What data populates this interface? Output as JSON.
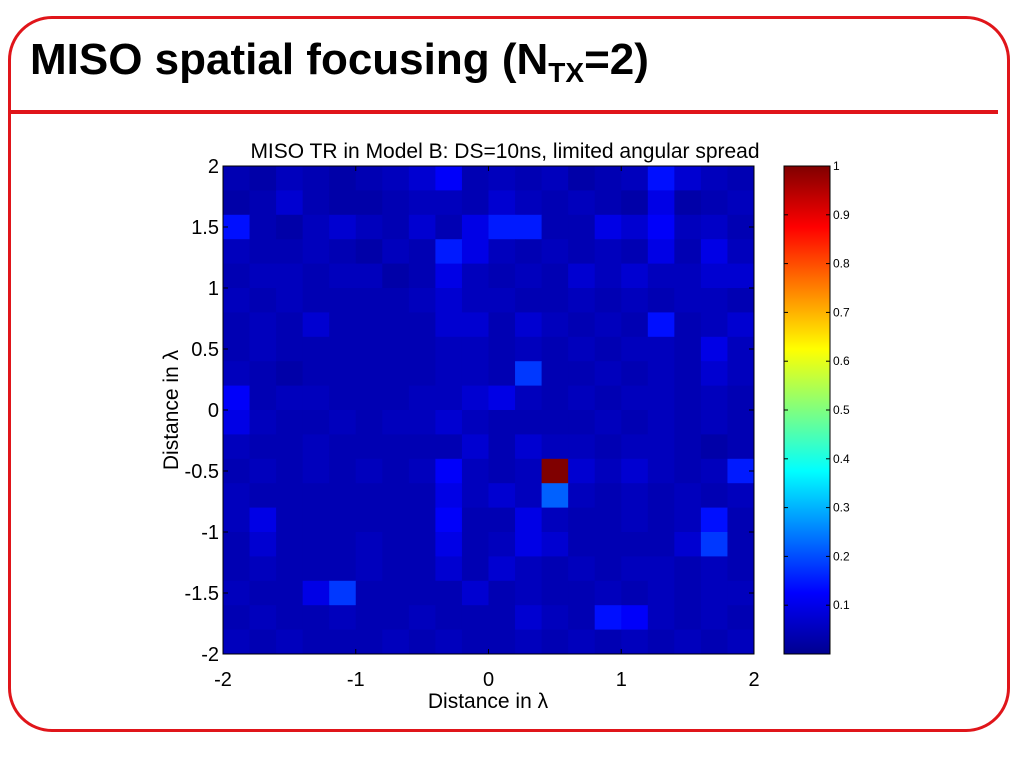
{
  "slide": {
    "title_main": "MISO spatial focusing (N",
    "title_sub": "TX",
    "title_end": "=2)",
    "accent_color": "#e0151a"
  },
  "chart_data": {
    "type": "heatmap",
    "title": "MISO TR in Model B: DS=10ns, limited angular spread",
    "xlabel": "Distance in λ",
    "ylabel": "Distance in λ",
    "xlim": [
      -2,
      2
    ],
    "ylim": [
      -2,
      2
    ],
    "xticks": [
      "-2",
      "-1",
      "0",
      "1",
      "2"
    ],
    "yticks": [
      "2",
      "1.5",
      "1",
      "0.5",
      "0",
      "-0.5",
      "-1",
      "-1.5",
      "-2"
    ],
    "colorbar": {
      "range": [
        0,
        1
      ],
      "ticks": [
        "1",
        "0.9",
        "0.8",
        "0.7",
        "0.6",
        "0.5",
        "0.4",
        "0.3",
        "0.2",
        "0.1"
      ],
      "colormap": "jet"
    },
    "rows": 20,
    "cols": 20,
    "row_order": "top_to_bottom (y = 2 down to -2)",
    "values": [
      [
        0.05,
        0.04,
        0.06,
        0.05,
        0.04,
        0.05,
        0.06,
        0.08,
        0.12,
        0.05,
        0.06,
        0.05,
        0.06,
        0.04,
        0.05,
        0.06,
        0.14,
        0.08,
        0.06,
        0.05
      ],
      [
        0.04,
        0.05,
        0.08,
        0.05,
        0.04,
        0.04,
        0.05,
        0.06,
        0.06,
        0.05,
        0.08,
        0.06,
        0.05,
        0.06,
        0.05,
        0.04,
        0.1,
        0.04,
        0.05,
        0.06
      ],
      [
        0.14,
        0.05,
        0.04,
        0.06,
        0.08,
        0.06,
        0.05,
        0.08,
        0.05,
        0.1,
        0.15,
        0.15,
        0.05,
        0.05,
        0.1,
        0.08,
        0.12,
        0.06,
        0.07,
        0.05
      ],
      [
        0.06,
        0.05,
        0.05,
        0.06,
        0.05,
        0.04,
        0.06,
        0.05,
        0.15,
        0.1,
        0.06,
        0.05,
        0.06,
        0.05,
        0.06,
        0.05,
        0.1,
        0.05,
        0.1,
        0.06
      ],
      [
        0.05,
        0.06,
        0.06,
        0.05,
        0.06,
        0.06,
        0.04,
        0.05,
        0.1,
        0.06,
        0.05,
        0.06,
        0.05,
        0.08,
        0.06,
        0.08,
        0.06,
        0.06,
        0.08,
        0.08
      ],
      [
        0.06,
        0.05,
        0.06,
        0.05,
        0.05,
        0.05,
        0.05,
        0.06,
        0.08,
        0.06,
        0.06,
        0.05,
        0.05,
        0.06,
        0.05,
        0.06,
        0.05,
        0.06,
        0.06,
        0.05
      ],
      [
        0.05,
        0.06,
        0.05,
        0.08,
        0.05,
        0.05,
        0.05,
        0.05,
        0.08,
        0.08,
        0.05,
        0.08,
        0.06,
        0.05,
        0.06,
        0.05,
        0.14,
        0.05,
        0.06,
        0.08
      ],
      [
        0.05,
        0.06,
        0.05,
        0.05,
        0.05,
        0.05,
        0.05,
        0.05,
        0.06,
        0.06,
        0.05,
        0.06,
        0.05,
        0.06,
        0.05,
        0.06,
        0.06,
        0.05,
        0.1,
        0.06
      ],
      [
        0.06,
        0.05,
        0.04,
        0.05,
        0.05,
        0.05,
        0.05,
        0.05,
        0.06,
        0.06,
        0.05,
        0.18,
        0.05,
        0.05,
        0.06,
        0.05,
        0.06,
        0.05,
        0.08,
        0.06
      ],
      [
        0.12,
        0.05,
        0.06,
        0.06,
        0.05,
        0.05,
        0.05,
        0.06,
        0.06,
        0.08,
        0.1,
        0.06,
        0.05,
        0.06,
        0.05,
        0.06,
        0.06,
        0.05,
        0.06,
        0.05
      ],
      [
        0.1,
        0.06,
        0.05,
        0.05,
        0.06,
        0.05,
        0.06,
        0.06,
        0.08,
        0.06,
        0.05,
        0.05,
        0.05,
        0.05,
        0.06,
        0.05,
        0.06,
        0.05,
        0.06,
        0.05
      ],
      [
        0.06,
        0.05,
        0.05,
        0.06,
        0.05,
        0.05,
        0.05,
        0.05,
        0.05,
        0.08,
        0.05,
        0.08,
        0.06,
        0.06,
        0.05,
        0.06,
        0.06,
        0.05,
        0.04,
        0.05
      ],
      [
        0.05,
        0.06,
        0.05,
        0.06,
        0.05,
        0.06,
        0.05,
        0.06,
        0.12,
        0.06,
        0.05,
        0.06,
        1.0,
        0.08,
        0.06,
        0.08,
        0.06,
        0.05,
        0.06,
        0.15
      ],
      [
        0.06,
        0.05,
        0.05,
        0.05,
        0.05,
        0.05,
        0.05,
        0.05,
        0.1,
        0.06,
        0.08,
        0.06,
        0.22,
        0.06,
        0.05,
        0.06,
        0.05,
        0.06,
        0.05,
        0.06
      ],
      [
        0.06,
        0.1,
        0.05,
        0.05,
        0.05,
        0.05,
        0.05,
        0.05,
        0.12,
        0.05,
        0.05,
        0.1,
        0.06,
        0.05,
        0.05,
        0.06,
        0.05,
        0.06,
        0.14,
        0.05
      ],
      [
        0.05,
        0.08,
        0.05,
        0.05,
        0.05,
        0.06,
        0.05,
        0.05,
        0.1,
        0.05,
        0.06,
        0.1,
        0.08,
        0.05,
        0.05,
        0.05,
        0.05,
        0.08,
        0.18,
        0.05
      ],
      [
        0.05,
        0.06,
        0.05,
        0.05,
        0.05,
        0.06,
        0.05,
        0.05,
        0.08,
        0.05,
        0.08,
        0.06,
        0.05,
        0.06,
        0.05,
        0.06,
        0.06,
        0.05,
        0.06,
        0.05
      ],
      [
        0.06,
        0.05,
        0.05,
        0.1,
        0.18,
        0.05,
        0.05,
        0.05,
        0.05,
        0.08,
        0.05,
        0.06,
        0.05,
        0.05,
        0.06,
        0.05,
        0.06,
        0.05,
        0.06,
        0.06
      ],
      [
        0.05,
        0.06,
        0.05,
        0.05,
        0.06,
        0.05,
        0.05,
        0.06,
        0.05,
        0.05,
        0.05,
        0.08,
        0.06,
        0.05,
        0.14,
        0.12,
        0.06,
        0.05,
        0.06,
        0.05
      ],
      [
        0.06,
        0.05,
        0.06,
        0.05,
        0.05,
        0.05,
        0.06,
        0.05,
        0.06,
        0.05,
        0.05,
        0.06,
        0.05,
        0.06,
        0.05,
        0.06,
        0.05,
        0.06,
        0.05,
        0.06
      ]
    ]
  }
}
